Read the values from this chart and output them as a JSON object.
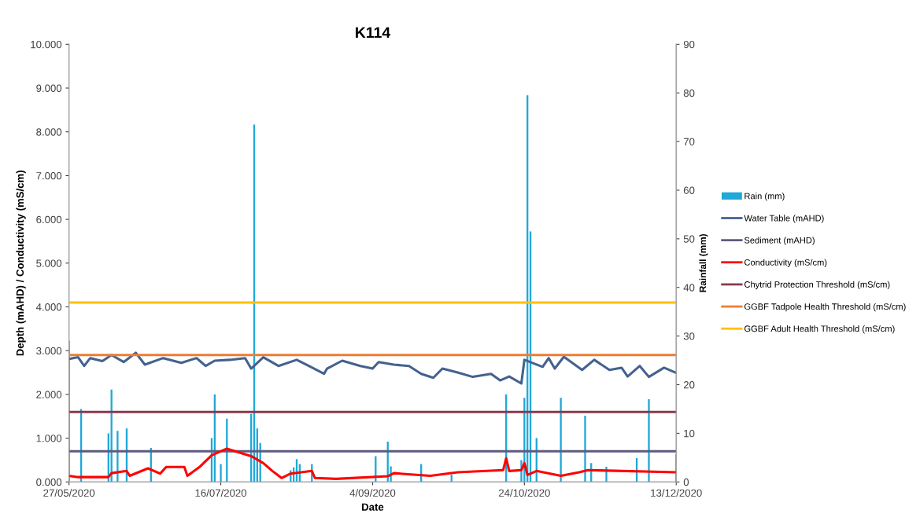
{
  "chart_data": {
    "type": "line",
    "title": "K114",
    "xlabel": "Date",
    "ylabel": "Depth (mAHD) / Conductivity (mS/cm)",
    "y2label": "Rainfall (mm)",
    "xlim": [
      "2020-05-27",
      "2020-12-13"
    ],
    "xticks": [
      {
        "value": "2020-05-27",
        "label": "27/05/2020"
      },
      {
        "value": "2020-07-16",
        "label": "16/07/2020"
      },
      {
        "value": "2020-09-04",
        "label": "4/09/2020"
      },
      {
        "value": "2020-10-24",
        "label": "24/10/2020"
      },
      {
        "value": "2020-12-13",
        "label": "13/12/2020"
      }
    ],
    "ylim": [
      0,
      10
    ],
    "yticks": [
      {
        "value": 0,
        "label": "0.000"
      },
      {
        "value": 1,
        "label": "1.000"
      },
      {
        "value": 2,
        "label": "2.000"
      },
      {
        "value": 3,
        "label": "3.000"
      },
      {
        "value": 4,
        "label": "4.000"
      },
      {
        "value": 5,
        "label": "5.000"
      },
      {
        "value": 6,
        "label": "6.000"
      },
      {
        "value": 7,
        "label": "7.000"
      },
      {
        "value": 8,
        "label": "8.000"
      },
      {
        "value": 9,
        "label": "9.000"
      },
      {
        "value": 10,
        "label": "10.000"
      }
    ],
    "y2lim": [
      0,
      90
    ],
    "y2ticks": [
      0,
      10,
      20,
      30,
      40,
      50,
      60,
      70,
      80,
      90
    ],
    "grid": false,
    "legend": "right",
    "marker": "none",
    "line_style": "solid",
    "series": [
      {
        "name": "Rain (mm)",
        "type": "bar",
        "axis": "y2",
        "color": "#1fa8d8",
        "x": [
          "2020-05-27",
          "2020-05-31",
          "2020-06-09",
          "2020-06-10",
          "2020-06-12",
          "2020-06-15",
          "2020-06-23",
          "2020-07-13",
          "2020-07-14",
          "2020-07-16",
          "2020-07-18",
          "2020-07-26",
          "2020-07-27",
          "2020-07-28",
          "2020-07-29",
          "2020-08-08",
          "2020-08-09",
          "2020-08-10",
          "2020-08-11",
          "2020-08-15",
          "2020-09-05",
          "2020-09-09",
          "2020-09-10",
          "2020-09-20",
          "2020-09-30",
          "2020-10-18",
          "2020-10-23",
          "2020-10-24",
          "2020-10-25",
          "2020-10-26",
          "2020-10-28",
          "2020-11-05",
          "2020-11-13",
          "2020-11-15",
          "2020-11-20",
          "2020-11-30",
          "2020-12-04",
          "2020-12-13"
        ],
        "values": [
          29,
          15,
          10,
          19,
          10.5,
          11,
          7,
          9,
          18,
          3.7,
          13,
          14,
          73.5,
          11,
          8,
          2.4,
          3,
          4.7,
          3.7,
          3.7,
          5.3,
          8.3,
          3.2,
          3.7,
          1.5,
          18,
          4.5,
          17.3,
          79.5,
          51.5,
          9,
          17.3,
          13.6,
          3.9,
          3.1,
          4.9,
          17,
          5.7
        ]
      },
      {
        "name": "Water Table (mAHD)",
        "color": "#44628f",
        "x": [
          "2020-05-27",
          "2020-05-30",
          "2020-06-01",
          "2020-06-03",
          "2020-06-07",
          "2020-06-10",
          "2020-06-14",
          "2020-06-18",
          "2020-06-21",
          "2020-06-27",
          "2020-07-03",
          "2020-07-08",
          "2020-07-11",
          "2020-07-14",
          "2020-07-19",
          "2020-07-24",
          "2020-07-26",
          "2020-07-30",
          "2020-08-04",
          "2020-08-10",
          "2020-08-14",
          "2020-08-19",
          "2020-08-20",
          "2020-08-25",
          "2020-08-31",
          "2020-09-04",
          "2020-09-06",
          "2020-09-11",
          "2020-09-16",
          "2020-09-20",
          "2020-09-24",
          "2020-09-27",
          "2020-10-02",
          "2020-10-07",
          "2020-10-13",
          "2020-10-16",
          "2020-10-19",
          "2020-10-23",
          "2020-10-24",
          "2020-10-30",
          "2020-11-01",
          "2020-11-03",
          "2020-11-06",
          "2020-11-12",
          "2020-11-16",
          "2020-11-21",
          "2020-11-25",
          "2020-11-27",
          "2020-12-01",
          "2020-12-04",
          "2020-12-09",
          "2020-12-13"
        ],
        "values": [
          2.81,
          2.85,
          2.65,
          2.83,
          2.76,
          2.9,
          2.74,
          2.95,
          2.68,
          2.83,
          2.72,
          2.83,
          2.65,
          2.77,
          2.79,
          2.83,
          2.59,
          2.85,
          2.65,
          2.79,
          2.65,
          2.47,
          2.59,
          2.77,
          2.65,
          2.59,
          2.74,
          2.68,
          2.65,
          2.47,
          2.38,
          2.59,
          2.5,
          2.4,
          2.47,
          2.32,
          2.41,
          2.25,
          2.79,
          2.63,
          2.83,
          2.59,
          2.86,
          2.56,
          2.79,
          2.56,
          2.61,
          2.41,
          2.65,
          2.4,
          2.61,
          2.49
        ]
      },
      {
        "name": "Sediment (mAHD)",
        "color": "#5e5a80",
        "x": [
          "2020-05-27",
          "2020-12-13"
        ],
        "values": [
          0.7,
          0.7
        ]
      },
      {
        "name": "Conductivity (mS/cm)",
        "color": "#ff0000",
        "x": [
          "2020-05-27",
          "2020-05-30",
          "2020-06-09",
          "2020-06-10",
          "2020-06-15",
          "2020-06-16",
          "2020-06-22",
          "2020-06-26",
          "2020-06-28",
          "2020-07-04",
          "2020-07-05",
          "2020-07-09",
          "2020-07-13",
          "2020-07-18",
          "2020-07-26",
          "2020-07-30",
          "2020-08-02",
          "2020-08-05",
          "2020-08-08",
          "2020-08-15",
          "2020-08-16",
          "2020-08-23",
          "2020-09-09",
          "2020-09-11",
          "2020-09-23",
          "2020-10-02",
          "2020-10-17",
          "2020-10-18",
          "2020-10-19",
          "2020-10-23",
          "2020-10-24",
          "2020-10-25",
          "2020-10-28",
          "2020-11-05",
          "2020-11-11",
          "2020-11-14",
          "2020-12-13"
        ],
        "values": [
          0.14,
          0.11,
          0.11,
          0.2,
          0.25,
          0.14,
          0.31,
          0.19,
          0.34,
          0.34,
          0.14,
          0.34,
          0.61,
          0.76,
          0.59,
          0.43,
          0.25,
          0.09,
          0.19,
          0.25,
          0.09,
          0.07,
          0.13,
          0.2,
          0.14,
          0.22,
          0.27,
          0.54,
          0.25,
          0.27,
          0.43,
          0.16,
          0.25,
          0.14,
          0.22,
          0.27,
          0.22
        ]
      },
      {
        "name": "Chytrid Protection Threshold (mS/cm)",
        "color": "#8b3a4a",
        "x": [
          "2020-05-27",
          "2020-12-13"
        ],
        "values": [
          1.6,
          1.6
        ]
      },
      {
        "name": "GGBF Tadpole Health Threshold (mS/cm)",
        "color": "#ed7d31",
        "x": [
          "2020-05-27",
          "2020-12-13"
        ],
        "values": [
          2.9,
          2.9
        ]
      },
      {
        "name": "GGBF Adult Health Threshold (mS/cm)",
        "color": "#ffc000",
        "x": [
          "2020-05-27",
          "2020-12-13"
        ],
        "values": [
          4.1,
          4.1
        ]
      }
    ]
  }
}
